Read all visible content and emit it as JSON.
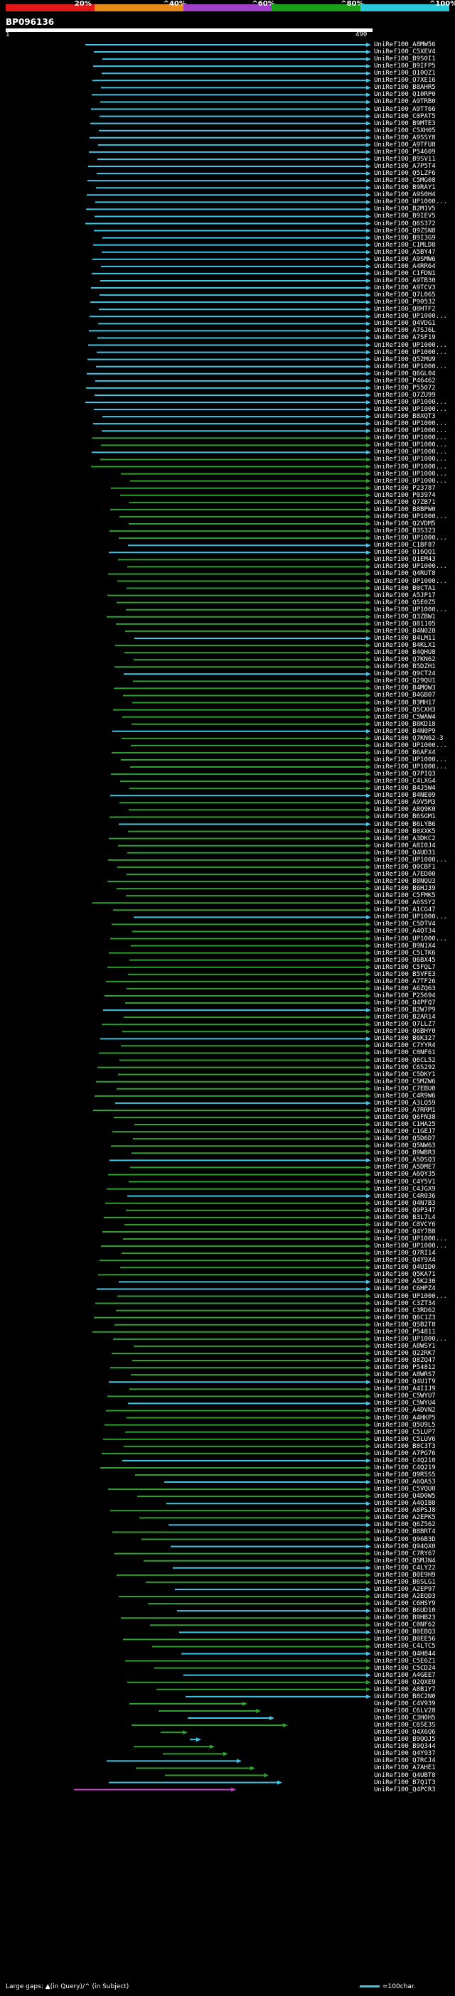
{
  "legend": {
    "colors": [
      "#e01818",
      "#e88a18",
      "#a040c8",
      "#1aa018",
      "#28c8d8"
    ],
    "labels": [
      "20%",
      "^40%",
      "^60%",
      "^80%",
      "^100%"
    ]
  },
  "query": {
    "name": "BP096136",
    "scale_start": "1",
    "scale_end": "490"
  },
  "hit_colors": {
    "cyan": "#3fc6e6",
    "green": "#2ea02e",
    "magenta": "#c838c8"
  },
  "hits": [
    "UniRef100_A8MW56",
    "UniRef100_C5XEV4",
    "UniRef100_B9S0I1",
    "UniRef100_B9IFP5",
    "UniRef100_Q10QZ1",
    "UniRef100_Q7XE16",
    "UniRef100_B8AHR5",
    "UniRef100_Q10RP0",
    "UniRef100_A9TRB0",
    "UniRef100_A9TT66",
    "UniRef100_C0PAT5",
    "UniRef100_B9MTE3",
    "UniRef100_C5XH05",
    "UniRef100_A9SSY8",
    "UniRef100_A9TFU8",
    "UniRef100_P54609",
    "UniRef100_B9SV11",
    "UniRef100_A7P5T4",
    "UniRef100_Q5LZF6",
    "UniRef100_C5MG08",
    "UniRef100_B9RAY1",
    "UniRef100_A9S0H4",
    "UniRef100_UP1000...",
    "UniRef100_B2M1V5",
    "UniRef100_B9IEV5",
    "UniRef100_Q6S372",
    "UniRef100_Q9ZSN8",
    "UniRef100_B9I3G9",
    "UniRef100_C1MLD8",
    "UniRef100_A5BY47",
    "UniRef100_A9SMW6",
    "UniRef100_A4RR64",
    "UniRef100_C1FDN1",
    "UniRef100_A9TB30",
    "UniRef100_A9TCV3",
    "UniRef100_Q7L065",
    "UniRef100_P90532",
    "UniRef100_Q8HTF2",
    "UniRef100_UP1000...",
    "UniRef100_Q4VDG1",
    "UniRef100_A7SJ6L",
    "UniRef100_A7SF19",
    "UniRef100_UP1000...",
    "UniRef100_UP1000...",
    "UniRef100_Q52MU9",
    "UniRef100_UP1000...",
    "UniRef100_Q6GL04",
    "UniRef100_P46462",
    "UniRef100_P55072",
    "UniRef100_Q7ZU99",
    "UniRef100_UP1000...",
    "UniRef100_UP1000...",
    "UniRef100_B8XQT3",
    "UniRef100_UP1000...",
    "UniRef100_UP1000...",
    "UniRef100_UP1000...",
    "UniRef100_UP1000...",
    "UniRef100_UP1000...",
    "UniRef100_UP1000...",
    "UniRef100_UP1000...",
    "UniRef100_UP1000...",
    "UniRef100_UP1000...",
    "UniRef100_P23787",
    "UniRef100_P03974",
    "UniRef100_Q7ZB71",
    "UniRef100_B8BPW0",
    "UniRef100_UP1000...",
    "UniRef100_Q2VDM5",
    "UniRef100_B3S323",
    "UniRef100_UP1000...",
    "UniRef100_C1BF87",
    "UniRef100_Q16QQ1",
    "UniRef100_Q1EM43",
    "UniRef100_UP1000...",
    "UniRef100_Q4RUT8",
    "UniRef100_UP1000...",
    "UniRef100_B0CTA1",
    "UniRef100_A5JP17",
    "UniRef100_Q5E0Z5",
    "UniRef100_UP1000...",
    "UniRef100_Q3ZBW1",
    "UniRef100_Q81105",
    "UniRef100_B4N028",
    "UniRef100_B4LM11",
    "UniRef100_B4KLX1",
    "UniRef100_B4QHU8",
    "UniRef100_Q7KN62",
    "UniRef100_B5DZH1",
    "UniRef100_Q9CT24",
    "UniRef100_Q29QU1",
    "UniRef100_B4MQW3",
    "UniRef100_B4GB07",
    "UniRef100_B3MH17",
    "UniRef100_Q5CXH3",
    "UniRef100_C5WAW4",
    "UniRef100_B8KD18",
    "UniRef100_B4N0P9",
    "UniRef100_Q7KN62-3",
    "UniRef100_UP1000...",
    "UniRef100_B6AFX4",
    "UniRef100_UP1000...",
    "UniRef100_UP1000...",
    "UniRef100_Q7PIQ3",
    "UniRef100_C4LXG4",
    "UniRef100_B4J5W4",
    "UniRef100_B4NE09",
    "UniRef100_A9V5M3",
    "UniRef100_A8Q9K0",
    "UniRef100_B6SGM1",
    "UniRef100_B6LYB6",
    "UniRef100_B0XXK5",
    "UniRef100_A3DKC2",
    "UniRef100_A8I0J4",
    "UniRef100_Q4UD31",
    "UniRef100_UP1000...",
    "UniRef100_Q0CBF1",
    "UniRef100_A7ED00",
    "UniRef100_B8NQU3",
    "UniRef100_B6HJ39",
    "UniRef100_C5FMK5",
    "UniRef100_A6SSY2",
    "UniRef100_A1CG47",
    "UniRef100_UP1000...",
    "UniRef100_C5DTV4",
    "UniRef100_A4QT34",
    "UniRef100_UP1000...",
    "UniRef100_B9N1X4",
    "UniRef100_C5LTK6",
    "UniRef100_Q6BX45",
    "UniRef100_C5FQL7",
    "UniRef100_B5VFE3",
    "UniRef100_A7TF26",
    "UniRef100_A6ZQ63",
    "UniRef100_P25694",
    "UniRef100_Q4PFQ7",
    "UniRef100_B2W7P9",
    "UniRef100_B2AR14",
    "UniRef100_Q7LLZ7",
    "UniRef100_Q6BHY0",
    "UniRef100_B6K327",
    "UniRef100_C7YYR4",
    "UniRef100_C0NF61",
    "UniRef100_Q6CL52",
    "UniRef100_C6S292",
    "UniRef100_C5DKY1",
    "UniRef100_C5MZW6",
    "UniRef100_C7EBU0",
    "UniRef100_C4R9W6",
    "UniRef100_A3LQ59",
    "UniRef100_A7RRM1",
    "UniRef100_Q6FN38",
    "UniRef100_C1HA25",
    "UniRef100_C1GEJ7",
    "UniRef100_Q5D6D7",
    "UniRef100_Q5NW63",
    "UniRef100_B9WBR3",
    "UniRef100_A5DSQ3",
    "UniRef100_A5DME7",
    "UniRef100_A6QY35",
    "UniRef100_C4Y5V1",
    "UniRef100_C4JGX9",
    "UniRef100_C4R036",
    "UniRef100_Q4N7B3",
    "UniRef100_Q9P347",
    "UniRef100_B3L7L4",
    "UniRef100_C8VCY6",
    "UniRef100_Q4Y7B8",
    "UniRef100_UP1000...",
    "UniRef100_UP1000...",
    "UniRef100_Q7RI14",
    "UniRef100_Q4Y9X4",
    "UniRef100_Q4UID0",
    "UniRef100_Q5KA71",
    "UniRef100_A5K230",
    "UniRef100_C6HPZ4",
    "UniRef100_UP1000...",
    "UniRef100_C3ZT34",
    "UniRef100_C3RD62",
    "UniRef100_Q6C1Z3",
    "UniRef100_Q5B2T8",
    "UniRef100_P54811",
    "UniRef100_UP1000...",
    "UniRef100_A8WSY1",
    "UniRef100_Q22RK7",
    "UniRef100_Q8ZQ47",
    "UniRef100_P54812",
    "UniRef100_A8WRS7",
    "UniRef100_Q4U1T9",
    "UniRef100_A4IIJ9",
    "UniRef100_C5WYU7",
    "UniRef100_C5WYU4",
    "UniRef100_A4DVN2",
    "UniRef100_A4HKP5",
    "UniRef100_Q5U9L5",
    "UniRef100_C5LUP7",
    "UniRef100_C5LUV6",
    "UniRef100_B8C3T3",
    "UniRef100_A7PG76",
    "UniRef100_C4Q210",
    "UniRef100_C4Q219",
    "UniRef100_Q9R5S5",
    "UniRef100_A6QA53",
    "UniRef100_C5VQU0",
    "UniRef100_Q4D0W5",
    "UniRef100_A4QIB8",
    "UniRef100_A8PSJ8",
    "UniRef100_A2EPK5",
    "UniRef100_Q6Z562",
    "UniRef100_B8BRT4",
    "UniRef100_Q96B3D",
    "UniRef100_Q94QX0",
    "UniRef100_C7RY67",
    "UniRef100_Q5MJN4",
    "UniRef100_C4LY22",
    "UniRef100_B0E9H9",
    "UniRef100_B6SLG1",
    "UniRef100_A2EP97",
    "UniRef100_A2EQD3",
    "UniRef100_C6HSY9",
    "UniRef100_B6UD10",
    "UniRef100_B9HB23",
    "UniRef100_C0NF62",
    "UniRef100_B0EBQ3",
    "UniRef100_B0EE56",
    "UniRef100_C4LTC5",
    "UniRef100_Q4H844",
    "UniRef100_C5E6Z1",
    "UniRef100_C5CD24",
    "UniRef100_A4GEE7",
    "UniRef100_Q2QXE9",
    "UniRef100_A8B1Y7",
    "UniRef100_B8C2N0",
    "UniRef100_C4V939",
    "UniRef100_C6LV28",
    "UniRef100_C3H0H5",
    "UniRef100_C6SE3S",
    "UniRef100_Q4X6Q6",
    "UniRef100_B9QQJ5",
    "UniRef100_B9Q344",
    "UniRef100_Q4Y937",
    "UniRef100_Q7RCJ4",
    "UniRef100_A7AHE1",
    "UniRef100_Q4UBT8",
    "UniRef100_B7Q1T3",
    "UniRef100_Q4PCR3"
  ],
  "footer": {
    "text": "Large gaps: ▲(in Query)/^ (in Subject)",
    "scale_label": "=100char."
  }
}
